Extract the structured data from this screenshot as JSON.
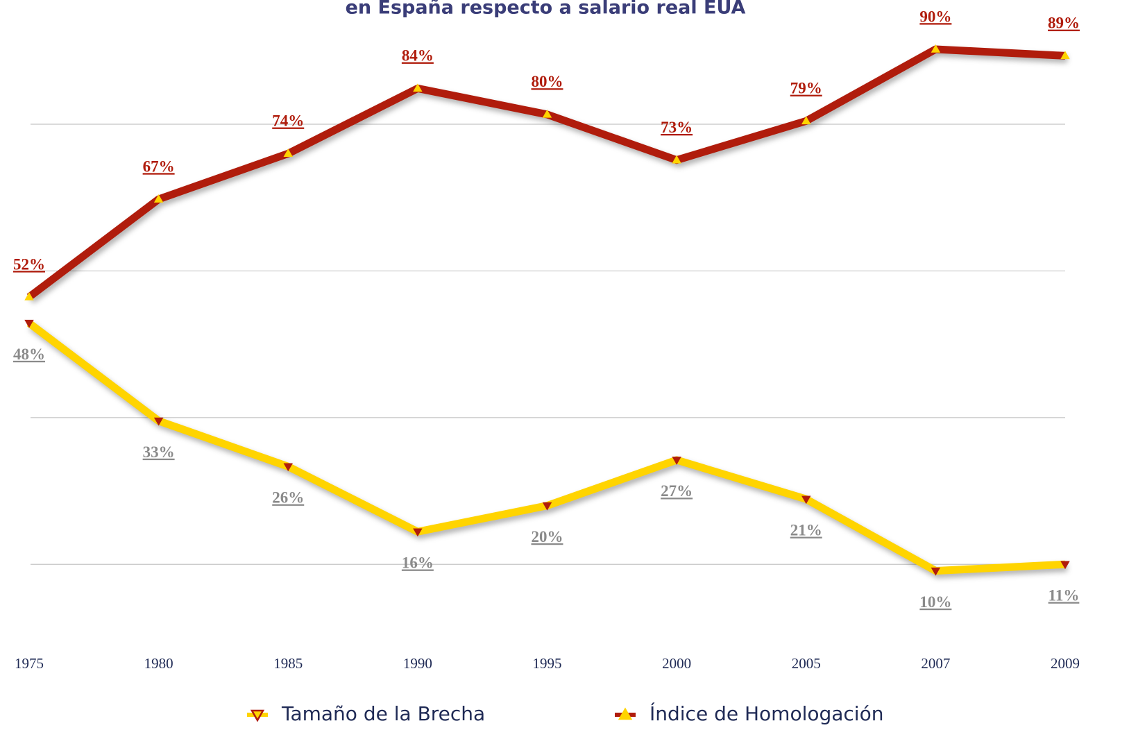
{
  "chart_data": {
    "type": "line",
    "title": "en España respecto a salario real EUA",
    "categories": [
      "1975",
      "1980",
      "1985",
      "1990",
      "1995",
      "2000",
      "2005",
      "2007",
      "2009"
    ],
    "series": [
      {
        "name": "Tamaño de la Brecha",
        "color": "#ffd400",
        "marker": "triangle-down",
        "values": [
          48,
          33,
          26,
          16,
          20,
          27,
          21,
          10,
          11
        ],
        "value_labels": [
          "48%",
          "33%",
          "26%",
          "16%",
          "20%",
          "27%",
          "21%",
          "10%",
          "11%"
        ]
      },
      {
        "name": "Índice de Homologación",
        "color": "#b01c0c",
        "marker": "triangle-up",
        "values": [
          52,
          67,
          74,
          84,
          80,
          73,
          79,
          90,
          89
        ],
        "value_labels": [
          "52%",
          "67%",
          "74%",
          "84%",
          "80%",
          "73%",
          "79%",
          "90%",
          "89%"
        ]
      }
    ],
    "ylim": [
      5,
      95
    ],
    "yticks": [
      11,
      33.5,
      56,
      78.5
    ],
    "grid": true,
    "legend": "bottom"
  }
}
